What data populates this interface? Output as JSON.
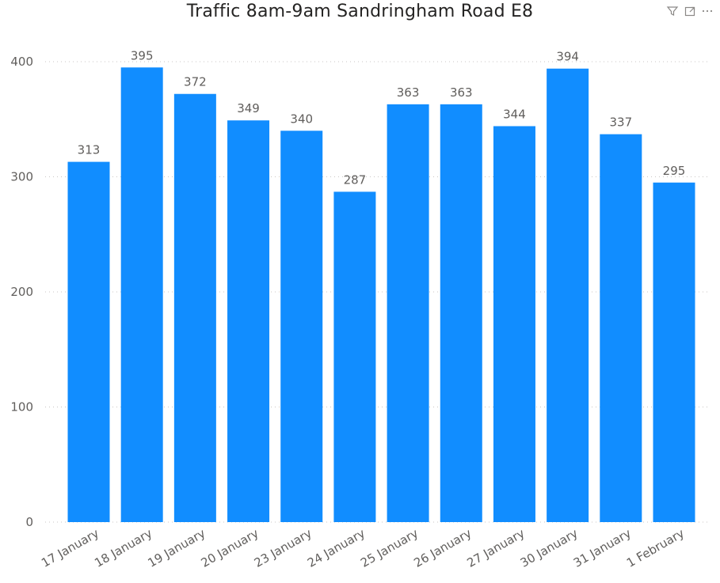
{
  "chart_data": {
    "type": "bar",
    "title": "Traffic 8am-9am Sandringham Road E8",
    "categories": [
      "17 January",
      "18 January",
      "19 January",
      "20 January",
      "23 January",
      "24 January",
      "25 January",
      "26 January",
      "27 January",
      "30 January",
      "31 January",
      "1 February"
    ],
    "values": [
      313,
      395,
      372,
      349,
      340,
      287,
      363,
      363,
      344,
      394,
      337,
      295
    ],
    "xlabel": "",
    "ylabel": "",
    "ylim": [
      0,
      400
    ],
    "yticks": [
      0,
      100,
      200,
      300,
      400
    ],
    "grid": true,
    "bar_color": "#118dff",
    "grid_color": "#c8c6c4"
  },
  "header": {
    "filter_icon": "filter-icon",
    "focus_icon": "focus-mode-icon",
    "more_icon": "more-options-icon"
  }
}
